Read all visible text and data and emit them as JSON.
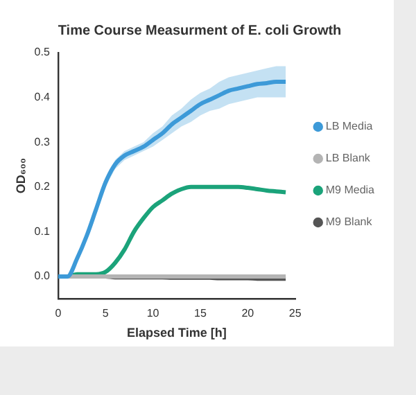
{
  "chart_data": {
    "type": "line",
    "title": "Time Course Measurment of E. coli Growth",
    "xlabel": "Elapsed Time [h]",
    "ylabel": "OD₆₀₀",
    "x": [
      0,
      1,
      2,
      3,
      4,
      5,
      6,
      7,
      8,
      9,
      10,
      11,
      12,
      13,
      14,
      15,
      16,
      17,
      18,
      19,
      20,
      21,
      22,
      23,
      24
    ],
    "series": [
      {
        "name": "LB Media",
        "color": "#3d9ad8",
        "values": [
          0,
          0,
          0.04,
          0.09,
          0.15,
          0.21,
          0.25,
          0.27,
          0.28,
          0.29,
          0.305,
          0.32,
          0.34,
          0.355,
          0.37,
          0.385,
          0.395,
          0.405,
          0.415,
          0.42,
          0.425,
          0.43,
          0.432,
          0.435,
          0.435
        ],
        "lower": [
          -0.005,
          -0.005,
          0.035,
          0.085,
          0.145,
          0.2,
          0.24,
          0.26,
          0.27,
          0.28,
          0.29,
          0.305,
          0.32,
          0.335,
          0.345,
          0.36,
          0.37,
          0.375,
          0.385,
          0.39,
          0.395,
          0.4,
          0.4,
          0.4,
          0.4
        ],
        "upper": [
          0.005,
          0.005,
          0.045,
          0.095,
          0.155,
          0.22,
          0.26,
          0.28,
          0.29,
          0.3,
          0.32,
          0.335,
          0.36,
          0.375,
          0.395,
          0.41,
          0.42,
          0.435,
          0.445,
          0.45,
          0.455,
          0.46,
          0.465,
          0.47,
          0.47
        ]
      },
      {
        "name": "LB Blank",
        "color": "#b4b4b4",
        "values": [
          0,
          0,
          0,
          0,
          0,
          0,
          0,
          0,
          0,
          0,
          0,
          0,
          0,
          0,
          0,
          0,
          0,
          0,
          0,
          0,
          0,
          0,
          0,
          0,
          0
        ]
      },
      {
        "name": "M9 Media",
        "color": "#1ba37a",
        "values": [
          0,
          0,
          0.005,
          0.005,
          0.005,
          0.01,
          0.03,
          0.06,
          0.1,
          0.13,
          0.155,
          0.17,
          0.185,
          0.195,
          0.2,
          0.2,
          0.2,
          0.2,
          0.2,
          0.2,
          0.198,
          0.195,
          0.192,
          0.19,
          0.188
        ]
      },
      {
        "name": "M9 Blank",
        "color": "#555555",
        "values": [
          0,
          0,
          0,
          0,
          0,
          0,
          -0.002,
          -0.002,
          -0.002,
          -0.002,
          -0.002,
          -0.002,
          -0.003,
          -0.003,
          -0.003,
          -0.003,
          -0.003,
          -0.004,
          -0.004,
          -0.004,
          -0.004,
          -0.005,
          -0.005,
          -0.005,
          -0.005
        ]
      }
    ],
    "xlim": [
      0,
      25
    ],
    "xticks": [
      0,
      5,
      10,
      15,
      20,
      25
    ],
    "ylim": [
      -0.05,
      0.5
    ],
    "yticks": [
      {
        "value": 0,
        "label": "0.0"
      },
      {
        "value": 0.1,
        "label": "0.1"
      },
      {
        "value": 0.2,
        "label": "0.2"
      },
      {
        "value": 0.3,
        "label": "0.3"
      },
      {
        "value": 0.4,
        "label": "0.4"
      },
      {
        "value": 0.5,
        "label": "0.5"
      }
    ],
    "legend": "right",
    "grid": false,
    "marker": "none",
    "line_style": "solid"
  }
}
